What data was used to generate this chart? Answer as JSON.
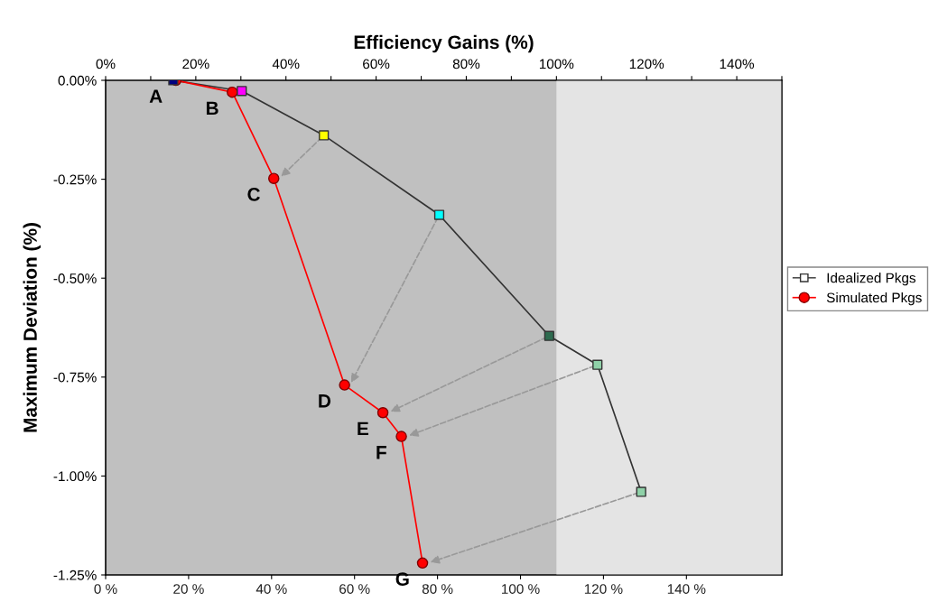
{
  "chart_data": {
    "type": "line",
    "x2label": "Efficiency Gains (%)",
    "ylabel": "Maximum Deviation (%)",
    "x2lim": [
      0,
      150
    ],
    "x2ticks": [
      {
        "value": 0,
        "label": "0%"
      },
      {
        "value": 10,
        "label": null
      },
      {
        "value": 20,
        "label": "20%"
      },
      {
        "value": 30,
        "label": null
      },
      {
        "value": 40,
        "label": "40%"
      },
      {
        "value": 50,
        "label": null
      },
      {
        "value": 60,
        "label": "60%"
      },
      {
        "value": 70,
        "label": null
      },
      {
        "value": 80,
        "label": "80%"
      },
      {
        "value": 90,
        "label": null
      },
      {
        "value": 100,
        "label": "100%"
      },
      {
        "value": 110,
        "label": null
      },
      {
        "value": 120,
        "label": "120%"
      },
      {
        "value": 130,
        "label": null
      },
      {
        "value": 140,
        "label": "140%"
      },
      {
        "value": 150,
        "label": null
      }
    ],
    "xlim": [
      0,
      163
    ],
    "xticks": [
      {
        "value": 0,
        "label": "0 %"
      },
      {
        "value": 20,
        "label": "20 %"
      },
      {
        "value": 40,
        "label": "40 %"
      },
      {
        "value": 60,
        "label": "60 %"
      },
      {
        "value": 80,
        "label": "80 %"
      },
      {
        "value": 100,
        "label": "100 %"
      },
      {
        "value": 120,
        "label": "120 %"
      },
      {
        "value": 140,
        "label": "140 %"
      }
    ],
    "ylim": [
      -1.25,
      0
    ],
    "yticks": [
      {
        "value": 0,
        "label": "0.00%"
      },
      {
        "value": -0.25,
        "label": "-0.25%"
      },
      {
        "value": -0.5,
        "label": "-0.50%"
      },
      {
        "value": -0.75,
        "label": "-0.75%"
      },
      {
        "value": -1.0,
        "label": "-1.00%"
      },
      {
        "value": -1.25,
        "label": "-1.25%"
      }
    ],
    "series": [
      {
        "name": "Idealized Pkgs",
        "axis": "x2",
        "color": "#333333",
        "marker": "square",
        "x": [
          15,
          30.2,
          48.4,
          74,
          98.4,
          109.1,
          118.8
        ],
        "values": [
          0,
          -0.027,
          -0.139,
          -0.34,
          -0.646,
          -0.719,
          -1.04
        ],
        "colors": [
          "#000080",
          "#ff00ff",
          "#ffff00",
          "#00ffff",
          "#2e6b4f",
          "#8fd1a8",
          "#8fd1a8"
        ]
      },
      {
        "name": "Simulated Pkgs",
        "axis": "x2",
        "color": "#ff0000",
        "marker": "circle",
        "x": [
          15.6,
          28.1,
          37.3,
          53,
          61.5,
          65.6,
          70.3
        ],
        "values": [
          0,
          -0.03,
          -0.248,
          -0.77,
          -0.84,
          -0.9,
          -1.22
        ]
      }
    ],
    "bands": [
      {
        "axis": "x2",
        "from": 100,
        "to": 150,
        "color": "#e4e4e4"
      }
    ],
    "annotations": [
      "A",
      "B",
      "C",
      "D",
      "E",
      "F",
      "G"
    ],
    "legend": "right"
  }
}
